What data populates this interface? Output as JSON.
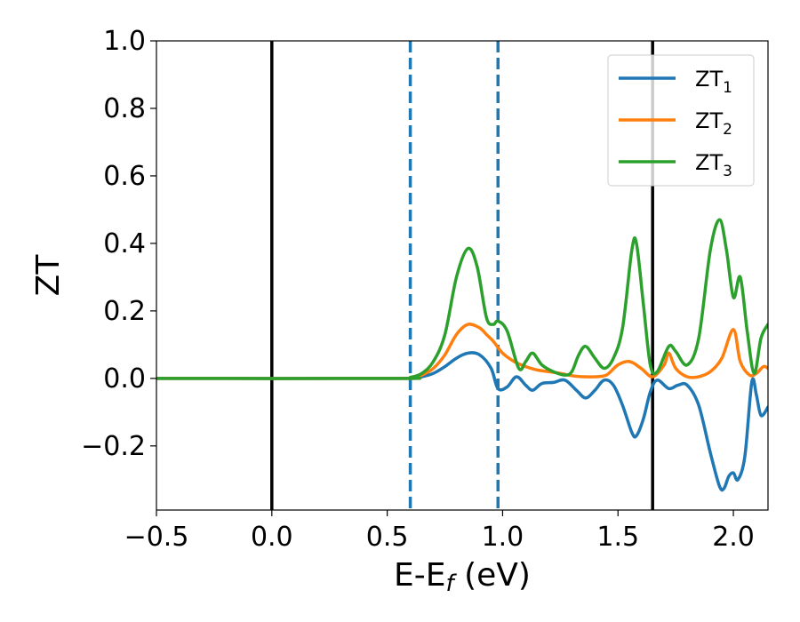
{
  "chart_data": {
    "type": "line",
    "xlabel": "E-E",
    "xlabel_sub": "f",
    "xlabel_unit": " (eV)",
    "ylabel": "ZT",
    "xlim": [
      -0.5,
      2.15
    ],
    "ylim": [
      -0.39,
      1.0
    ],
    "xticks": [
      -0.5,
      0.0,
      0.5,
      1.0,
      1.5,
      2.0
    ],
    "xtick_labels": [
      "−0.5",
      "0.0",
      "0.5",
      "1.0",
      "1.5",
      "2.0"
    ],
    "yticks": [
      -0.2,
      0.0,
      0.2,
      0.4,
      0.6,
      0.8,
      1.0
    ],
    "ytick_labels": [
      "−0.2",
      "0.0",
      "0.2",
      "0.4",
      "0.6",
      "0.8",
      "1.0"
    ],
    "grid": false,
    "legend_position": "top-right",
    "vlines": [
      {
        "x": 0.0,
        "style": "solid",
        "color": "#000000"
      },
      {
        "x": 1.65,
        "style": "solid",
        "color": "#000000"
      },
      {
        "x": 0.6,
        "style": "dashed",
        "color": "#1f77b4"
      },
      {
        "x": 0.98,
        "style": "dashed",
        "color": "#1f77b4"
      }
    ],
    "series": [
      {
        "name": "ZT",
        "sub": "1",
        "color": "#1f77b4",
        "points": [
          [
            -0.5,
            0
          ],
          [
            0.55,
            0
          ],
          [
            0.6,
            0.002
          ],
          [
            0.65,
            0.005
          ],
          [
            0.7,
            0.015
          ],
          [
            0.75,
            0.035
          ],
          [
            0.8,
            0.06
          ],
          [
            0.85,
            0.075
          ],
          [
            0.9,
            0.07
          ],
          [
            0.95,
            0.03
          ],
          [
            0.98,
            -0.03
          ],
          [
            1.02,
            -0.025
          ],
          [
            1.06,
            0.005
          ],
          [
            1.1,
            -0.02
          ],
          [
            1.13,
            -0.035
          ],
          [
            1.17,
            -0.015
          ],
          [
            1.22,
            -0.012
          ],
          [
            1.27,
            -0.005
          ],
          [
            1.32,
            -0.035
          ],
          [
            1.36,
            -0.058
          ],
          [
            1.4,
            -0.035
          ],
          [
            1.44,
            -0.005
          ],
          [
            1.48,
            -0.02
          ],
          [
            1.52,
            -0.08
          ],
          [
            1.56,
            -0.16
          ],
          [
            1.58,
            -0.17
          ],
          [
            1.61,
            -0.12
          ],
          [
            1.64,
            -0.04
          ],
          [
            1.67,
            -0.005
          ],
          [
            1.72,
            -0.03
          ],
          [
            1.76,
            -0.02
          ],
          [
            1.8,
            -0.02
          ],
          [
            1.85,
            -0.08
          ],
          [
            1.9,
            -0.22
          ],
          [
            1.94,
            -0.32
          ],
          [
            1.96,
            -0.325
          ],
          [
            1.98,
            -0.29
          ],
          [
            2.0,
            -0.28
          ],
          [
            2.02,
            -0.3
          ],
          [
            2.05,
            -0.23
          ],
          [
            2.08,
            -0.01
          ],
          [
            2.1,
            -0.05
          ],
          [
            2.12,
            -0.11
          ],
          [
            2.15,
            -0.085
          ]
        ]
      },
      {
        "name": "ZT",
        "sub": "2",
        "color": "#ff7f0e",
        "points": [
          [
            -0.5,
            0
          ],
          [
            0.55,
            0
          ],
          [
            0.6,
            0.002
          ],
          [
            0.65,
            0.01
          ],
          [
            0.7,
            0.03
          ],
          [
            0.75,
            0.07
          ],
          [
            0.8,
            0.13
          ],
          [
            0.85,
            0.16
          ],
          [
            0.9,
            0.15
          ],
          [
            0.93,
            0.13
          ],
          [
            0.96,
            0.11
          ],
          [
            1.0,
            0.075
          ],
          [
            1.05,
            0.05
          ],
          [
            1.1,
            0.035
          ],
          [
            1.15,
            0.025
          ],
          [
            1.2,
            0.02
          ],
          [
            1.25,
            0.015
          ],
          [
            1.3,
            0.008
          ],
          [
            1.35,
            0.005
          ],
          [
            1.4,
            0.005
          ],
          [
            1.45,
            0.01
          ],
          [
            1.5,
            0.04
          ],
          [
            1.55,
            0.05
          ],
          [
            1.6,
            0.03
          ],
          [
            1.65,
            0.005
          ],
          [
            1.7,
            0.04
          ],
          [
            1.72,
            0.075
          ],
          [
            1.75,
            0.03
          ],
          [
            1.8,
            0.005
          ],
          [
            1.85,
            0.005
          ],
          [
            1.9,
            0.02
          ],
          [
            1.95,
            0.06
          ],
          [
            2.0,
            0.145
          ],
          [
            2.03,
            0.05
          ],
          [
            2.07,
            0.01
          ],
          [
            2.1,
            0.015
          ],
          [
            2.13,
            0.035
          ],
          [
            2.15,
            0.03
          ]
        ]
      },
      {
        "name": "ZT",
        "sub": "3",
        "color": "#2ca02c",
        "points": [
          [
            -0.5,
            0
          ],
          [
            0.55,
            0
          ],
          [
            0.6,
            0.003
          ],
          [
            0.65,
            0.015
          ],
          [
            0.7,
            0.05
          ],
          [
            0.75,
            0.13
          ],
          [
            0.8,
            0.3
          ],
          [
            0.85,
            0.385
          ],
          [
            0.89,
            0.33
          ],
          [
            0.93,
            0.18
          ],
          [
            0.96,
            0.16
          ],
          [
            0.98,
            0.17
          ],
          [
            1.02,
            0.14
          ],
          [
            1.07,
            0.03
          ],
          [
            1.1,
            0.05
          ],
          [
            1.13,
            0.075
          ],
          [
            1.17,
            0.04
          ],
          [
            1.22,
            0.02
          ],
          [
            1.27,
            0.01
          ],
          [
            1.3,
            0.02
          ],
          [
            1.33,
            0.07
          ],
          [
            1.36,
            0.095
          ],
          [
            1.4,
            0.06
          ],
          [
            1.44,
            0.03
          ],
          [
            1.48,
            0.06
          ],
          [
            1.52,
            0.15
          ],
          [
            1.56,
            0.38
          ],
          [
            1.58,
            0.4
          ],
          [
            1.61,
            0.22
          ],
          [
            1.64,
            0.04
          ],
          [
            1.67,
            0.02
          ],
          [
            1.72,
            0.095
          ],
          [
            1.75,
            0.08
          ],
          [
            1.8,
            0.04
          ],
          [
            1.85,
            0.12
          ],
          [
            1.9,
            0.38
          ],
          [
            1.94,
            0.47
          ],
          [
            1.97,
            0.38
          ],
          [
            2.0,
            0.24
          ],
          [
            2.03,
            0.3
          ],
          [
            2.06,
            0.14
          ],
          [
            2.09,
            0.015
          ],
          [
            2.12,
            0.12
          ],
          [
            2.15,
            0.16
          ]
        ]
      }
    ]
  }
}
